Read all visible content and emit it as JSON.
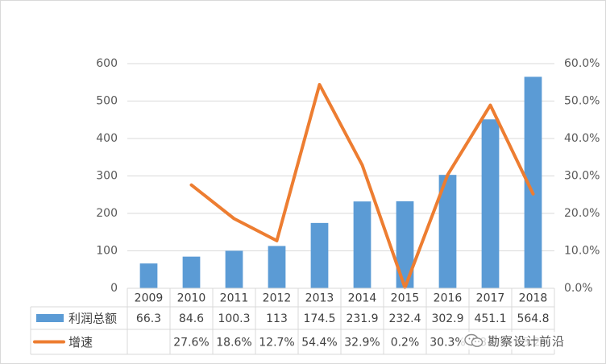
{
  "colors": {
    "bar": "#5b9bd5",
    "line": "#ed7d31"
  },
  "chart_data": {
    "type": "bar",
    "categories": [
      "2009",
      "2010",
      "2011",
      "2012",
      "2013",
      "2014",
      "2015",
      "2016",
      "2017",
      "2018"
    ],
    "series": [
      {
        "name": "利润总额",
        "type": "bar",
        "axis": "left",
        "values": [
          66.3,
          84.6,
          100.3,
          113,
          174.5,
          231.9,
          232.4,
          302.9,
          451.1,
          564.8
        ],
        "labels": [
          "66.3",
          "84.6",
          "100.3",
          "113",
          "174.5",
          "231.9",
          "232.4",
          "302.9",
          "451.1",
          "564.8"
        ]
      },
      {
        "name": "增速",
        "type": "line",
        "axis": "right",
        "values": [
          null,
          27.6,
          18.6,
          12.7,
          54.4,
          32.9,
          0.2,
          30.3,
          48.9,
          25.2
        ],
        "labels": [
          "",
          "27.6%",
          "18.6%",
          "12.7%",
          "54.4%",
          "32.9%",
          "0.2%",
          "30.3%",
          "48.9%",
          "25.2%"
        ]
      }
    ],
    "y_left": {
      "min": 0,
      "max": 600,
      "step": 100,
      "ticks": [
        "0",
        "100",
        "200",
        "300",
        "400",
        "500",
        "600"
      ]
    },
    "y_right": {
      "min": 0,
      "max": 60,
      "step": 10,
      "ticks": [
        "0.0%",
        "10.0%",
        "20.0%",
        "30.0%",
        "40.0%",
        "50.0%",
        "60.0%"
      ]
    },
    "grid": true,
    "legend": "data-table"
  },
  "watermark": {
    "icon": "wechat-icon",
    "text": "勘察设计前沿"
  }
}
